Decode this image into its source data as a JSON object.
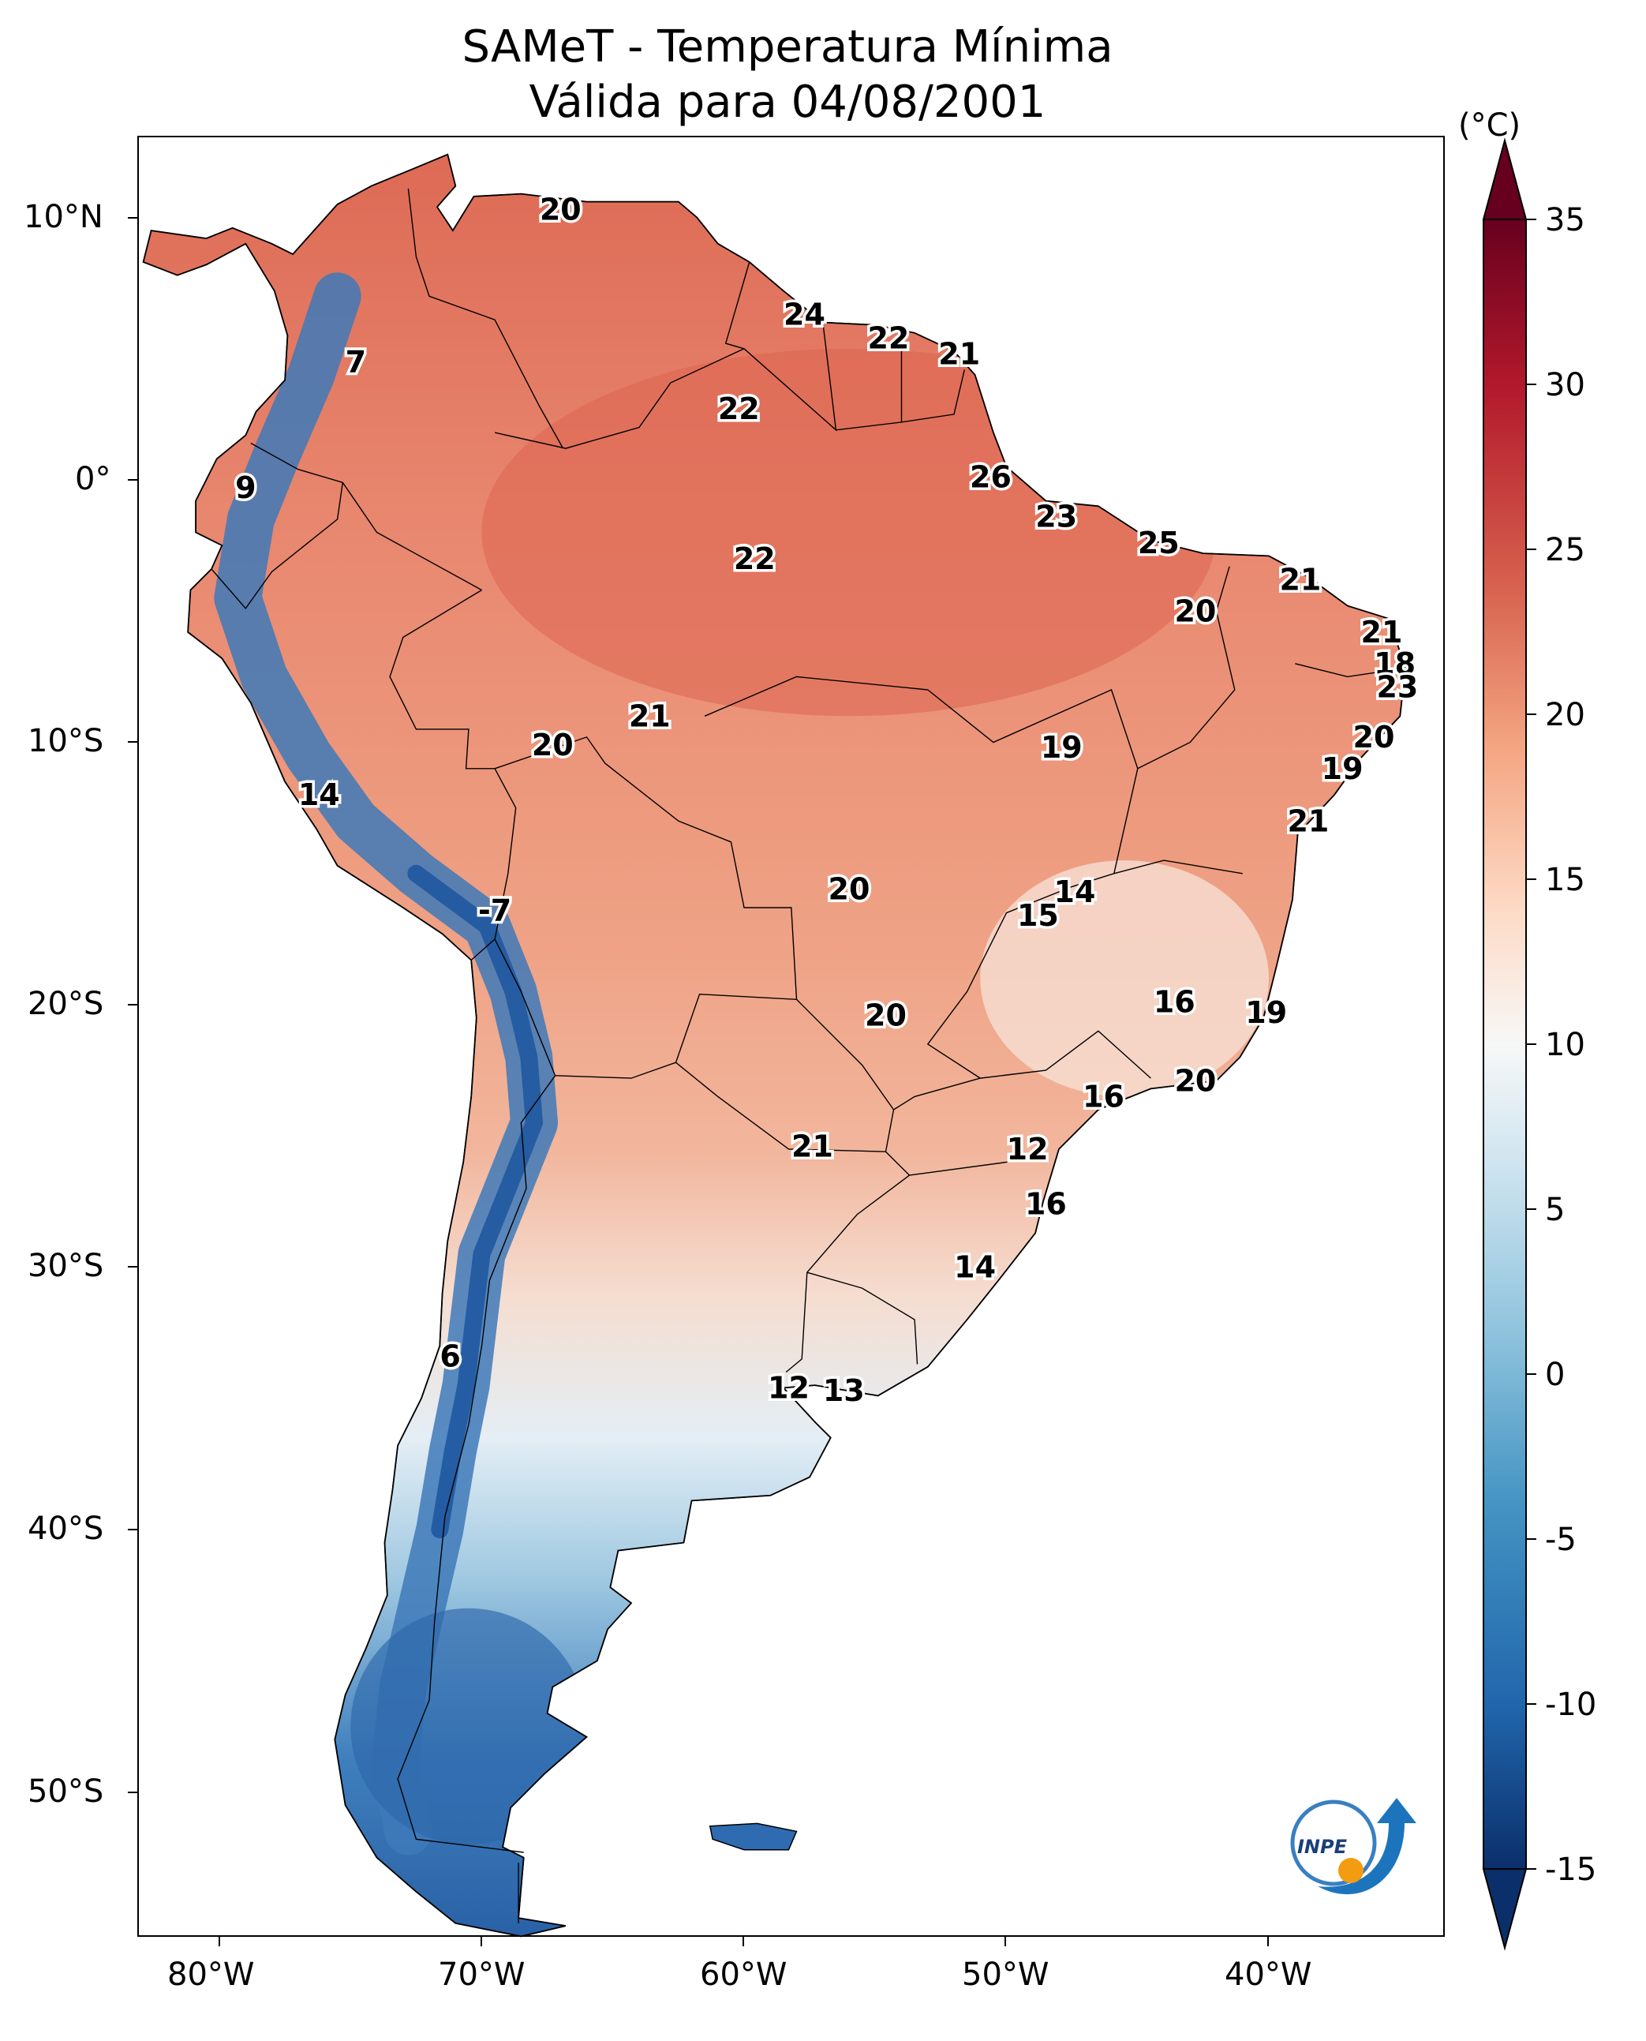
{
  "title": {
    "line1": "SAMeT - Temperatura Mínima",
    "line2": "Válida para 04/08/2001"
  },
  "axes": {
    "lat_ticks": [
      "10°N",
      "0°",
      "10°S",
      "20°S",
      "30°S",
      "40°S",
      "50°S"
    ],
    "lon_ticks": [
      "80°W",
      "70°W",
      "60°W",
      "50°W",
      "40°W"
    ]
  },
  "colorbar": {
    "unit": "(°C)",
    "ticks": [
      "35",
      "30",
      "25",
      "20",
      "15",
      "10",
      "5",
      "0",
      "-5",
      "-10",
      "-15"
    ],
    "min": -15,
    "max": 35,
    "colors": [
      "#0b2f6b",
      "#2166ac",
      "#4393c3",
      "#92c5de",
      "#d1e5f0",
      "#f7f7f7",
      "#fddbc7",
      "#f4a582",
      "#d6604d",
      "#b2182b",
      "#67001f"
    ]
  },
  "station_labels": [
    {
      "value": "20",
      "lon": -67.0,
      "lat": 10.3
    },
    {
      "value": "24",
      "lon": -57.7,
      "lat": 6.3
    },
    {
      "value": "22",
      "lon": -54.5,
      "lat": 5.4
    },
    {
      "value": "21",
      "lon": -51.8,
      "lat": 4.8
    },
    {
      "value": "7",
      "lon": -74.8,
      "lat": 4.5
    },
    {
      "value": "22",
      "lon": -60.2,
      "lat": 2.7
    },
    {
      "value": "26",
      "lon": -50.6,
      "lat": 0.1
    },
    {
      "value": "9",
      "lon": -79.0,
      "lat": -0.3
    },
    {
      "value": "23",
      "lon": -48.1,
      "lat": -1.4
    },
    {
      "value": "25",
      "lon": -44.2,
      "lat": -2.4
    },
    {
      "value": "22",
      "lon": -59.6,
      "lat": -3.0
    },
    {
      "value": "21",
      "lon": -38.8,
      "lat": -3.8
    },
    {
      "value": "20",
      "lon": -42.8,
      "lat": -5.0
    },
    {
      "value": "21",
      "lon": -35.7,
      "lat": -5.8
    },
    {
      "value": "18",
      "lon": -35.2,
      "lat": -7.0
    },
    {
      "value": "23",
      "lon": -35.1,
      "lat": -7.9
    },
    {
      "value": "21",
      "lon": -63.6,
      "lat": -9.0
    },
    {
      "value": "20",
      "lon": -36.0,
      "lat": -9.8
    },
    {
      "value": "20",
      "lon": -67.3,
      "lat": -10.1
    },
    {
      "value": "19",
      "lon": -47.9,
      "lat": -10.2
    },
    {
      "value": "19",
      "lon": -37.2,
      "lat": -11.0
    },
    {
      "value": "14",
      "lon": -76.2,
      "lat": -12.0
    },
    {
      "value": "21",
      "lon": -38.5,
      "lat": -13.0
    },
    {
      "value": "20",
      "lon": -56.0,
      "lat": -15.6
    },
    {
      "value": "14",
      "lon": -47.4,
      "lat": -15.7
    },
    {
      "value": "15",
      "lon": -48.8,
      "lat": -16.6
    },
    {
      "value": "-7",
      "lon": -69.5,
      "lat": -16.4
    },
    {
      "value": "16",
      "lon": -43.6,
      "lat": -19.9
    },
    {
      "value": "19",
      "lon": -40.1,
      "lat": -20.3
    },
    {
      "value": "20",
      "lon": -54.6,
      "lat": -20.4
    },
    {
      "value": "20",
      "lon": -42.8,
      "lat": -22.9
    },
    {
      "value": "16",
      "lon": -46.3,
      "lat": -23.5
    },
    {
      "value": "21",
      "lon": -57.4,
      "lat": -25.4
    },
    {
      "value": "12",
      "lon": -49.2,
      "lat": -25.5
    },
    {
      "value": "16",
      "lon": -48.5,
      "lat": -27.6
    },
    {
      "value": "14",
      "lon": -51.2,
      "lat": -30.0
    },
    {
      "value": "6",
      "lon": -71.2,
      "lat": -33.4
    },
    {
      "value": "12",
      "lon": -58.3,
      "lat": -34.6
    },
    {
      "value": "13",
      "lon": -56.2,
      "lat": -34.7
    }
  ],
  "logo": {
    "text": "INPE"
  }
}
